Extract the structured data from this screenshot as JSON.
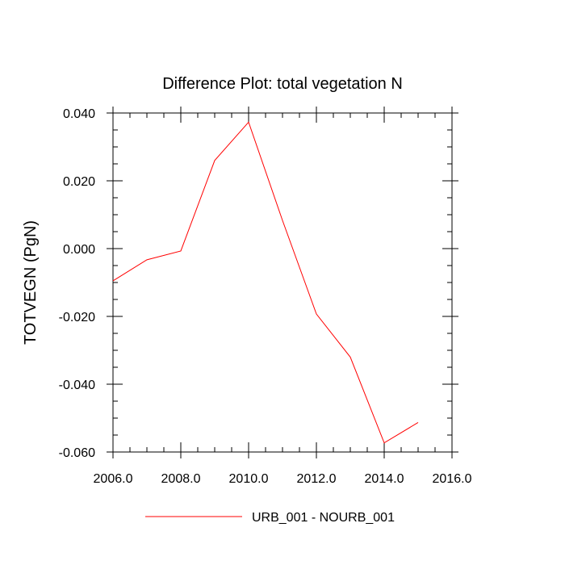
{
  "chart_data": {
    "type": "line",
    "title": "Difference Plot: total vegetation N",
    "xlabel": "",
    "ylabel": "TOTVEGN  (PgN)",
    "xlim": [
      2006.0,
      2016.0
    ],
    "ylim": [
      -0.06,
      0.04
    ],
    "xticks": [
      2006,
      2008,
      2010,
      2012,
      2014,
      2016
    ],
    "xtick_labels": [
      "2006.0",
      "2008.0",
      "2010.0",
      "2012.0",
      "2014.0",
      "2016.0"
    ],
    "yticks": [
      0.04,
      0.02,
      0.0,
      -0.02,
      -0.04,
      -0.06
    ],
    "ytick_labels": [
      "0.040",
      "0.020",
      "0.000",
      "-0.020",
      "-0.040",
      "-0.060"
    ],
    "grid": false,
    "legend_position": "bottom-center",
    "series": [
      {
        "name": "URB_001 - NOURB_001",
        "color": "#ff0000",
        "x": [
          2006,
          2007,
          2008,
          2009,
          2010,
          2011,
          2012,
          2013,
          2014,
          2015
        ],
        "y": [
          -0.0095,
          -0.0033,
          -0.0007,
          0.026,
          0.0373,
          0.0083,
          -0.0193,
          -0.032,
          -0.0573,
          -0.0513
        ]
      }
    ]
  }
}
